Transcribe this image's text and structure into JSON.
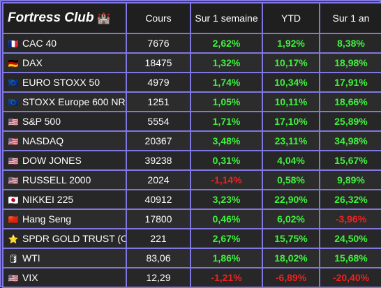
{
  "header": {
    "brand": "Fortress Club",
    "brand_icon": "castle-icon",
    "columns": [
      "Cours",
      "Sur 1 semaine",
      "YTD",
      "Sur 1 an"
    ]
  },
  "colors": {
    "positive": "#3ef23e",
    "negative": "#ee2222",
    "border": "#8078e0"
  },
  "rows": [
    {
      "flag": "france-flag-icon",
      "glyph": "🇫🇷",
      "name": "CAC 40",
      "price": "7676",
      "week": "2,62%",
      "week_dir": "pos",
      "ytd": "1,92%",
      "ytd_dir": "pos",
      "year": "8,38%",
      "year_dir": "pos"
    },
    {
      "flag": "germany-flag-icon",
      "glyph": "🇩🇪",
      "name": "DAX",
      "price": "18475",
      "week": "1,32%",
      "week_dir": "pos",
      "ytd": "10,17%",
      "ytd_dir": "pos",
      "year": "18,98%",
      "year_dir": "pos"
    },
    {
      "flag": "eu-flag-icon",
      "glyph": "🇪🇺",
      "name": "EURO STOXX 50",
      "price": "4979",
      "week": "1,74%",
      "week_dir": "pos",
      "ytd": "10,34%",
      "ytd_dir": "pos",
      "year": "17,91%",
      "year_dir": "pos"
    },
    {
      "flag": "eu-flag-icon",
      "glyph": "🇪🇺",
      "name": "STOXX Europe 600 NR",
      "price": "1251",
      "week": "1,05%",
      "week_dir": "pos",
      "ytd": "10,11%",
      "ytd_dir": "pos",
      "year": "18,66%",
      "year_dir": "pos"
    },
    {
      "flag": "us-flag-icon",
      "glyph": "🇺🇸",
      "name": "S&P 500",
      "price": "5554",
      "week": "1,71%",
      "week_dir": "pos",
      "ytd": "17,10%",
      "ytd_dir": "pos",
      "year": "25,89%",
      "year_dir": "pos"
    },
    {
      "flag": "us-flag-icon",
      "glyph": "🇺🇸",
      "name": "NASDAQ",
      "price": "20367",
      "week": "3,48%",
      "week_dir": "pos",
      "ytd": "23,11%",
      "ytd_dir": "pos",
      "year": "34,98%",
      "year_dir": "pos"
    },
    {
      "flag": "us-flag-icon",
      "glyph": "🇺🇸",
      "name": "DOW JONES",
      "price": "39238",
      "week": "0,31%",
      "week_dir": "pos",
      "ytd": "4,04%",
      "ytd_dir": "pos",
      "year": "15,67%",
      "year_dir": "pos"
    },
    {
      "flag": "us-flag-icon",
      "glyph": "🇺🇸",
      "name": "RUSSELL 2000",
      "price": "2024",
      "week": "-1,14%",
      "week_dir": "neg",
      "ytd": "0,58%",
      "ytd_dir": "pos",
      "year": "9,89%",
      "year_dir": "pos"
    },
    {
      "flag": "japan-flag-icon",
      "glyph": "🇯🇵",
      "name": "NIKKEI 225",
      "price": "40912",
      "week": "3,23%",
      "week_dir": "pos",
      "ytd": "22,90%",
      "ytd_dir": "pos",
      "year": "26,32%",
      "year_dir": "pos"
    },
    {
      "flag": "china-flag-icon",
      "glyph": "🇨🇳",
      "name": "Hang Seng",
      "price": "17800",
      "week": "0,46%",
      "week_dir": "pos",
      "ytd": "6,02%",
      "ytd_dir": "pos",
      "year": "-3,96%",
      "year_dir": "neg"
    },
    {
      "flag": "star-icon",
      "glyph": "⭐",
      "name": "SPDR GOLD TRUST (Or)",
      "price": "221",
      "week": "2,67%",
      "week_dir": "pos",
      "ytd": "15,75%",
      "ytd_dir": "pos",
      "year": "24,50%",
      "year_dir": "pos"
    },
    {
      "flag": "oil-barrel-icon",
      "glyph": "🛢",
      "name": "WTI",
      "price": "83,06",
      "week": "1,86%",
      "week_dir": "pos",
      "ytd": "18,02%",
      "ytd_dir": "pos",
      "year": "15,68%",
      "year_dir": "pos"
    },
    {
      "flag": "us-flag-icon",
      "glyph": "🇺🇸",
      "name": "VIX",
      "price": "12,29",
      "week": "-1,21%",
      "week_dir": "neg",
      "ytd": "-6,89%",
      "ytd_dir": "neg",
      "year": "-20,40%",
      "year_dir": "neg"
    }
  ]
}
